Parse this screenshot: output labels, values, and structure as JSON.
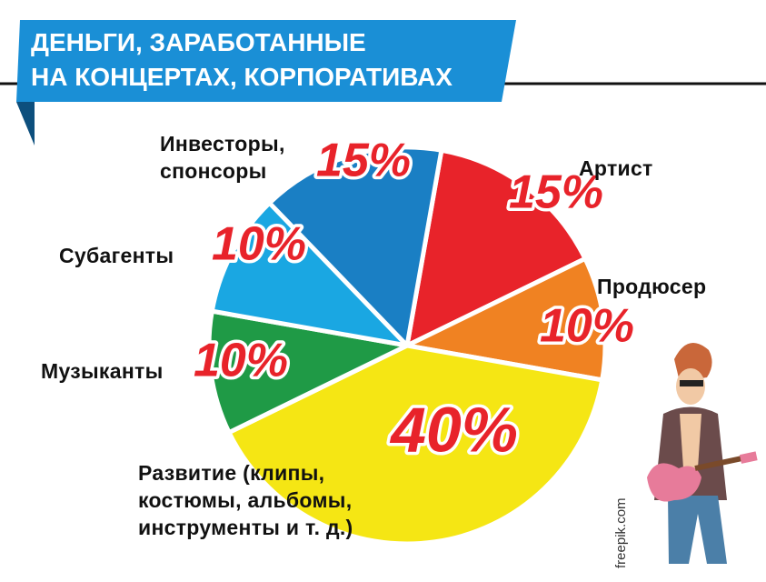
{
  "chart_data": {
    "type": "pie",
    "title_lines": [
      "ДЕНЬГИ, ЗАРАБОТАННЫЕ",
      "НА КОНЦЕРТАХ, КОРПОРАТИВАХ"
    ],
    "categories": [
      "Артист",
      "Продюсер",
      "Развитие (клипы, костюмы, альбомы, инструменты и т. д.)",
      "Музыканты",
      "Субагенты",
      "Инвесторы, спонсоры"
    ],
    "values": [
      15,
      10,
      40,
      10,
      10,
      15
    ],
    "value_labels": [
      "15%",
      "10%",
      "40%",
      "10%",
      "10%",
      "15%"
    ],
    "colors": [
      "#e8232a",
      "#f08222",
      "#f5e614",
      "#1f9a46",
      "#1aa7e2",
      "#1a7fc4"
    ],
    "credit": "freepik.com"
  }
}
